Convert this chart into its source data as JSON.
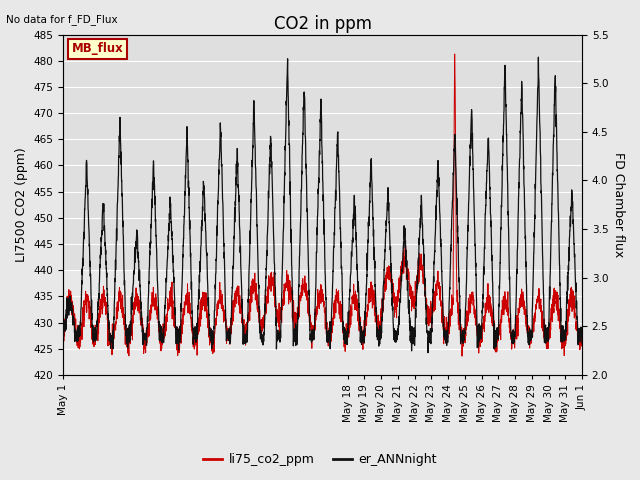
{
  "title": "CO2 in ppm",
  "top_left_text": "No data for f_FD_Flux",
  "ylabel_left": "LI7500 CO2 (ppm)",
  "ylabel_right": "FD Chamber flux",
  "ylim_left": [
    420,
    485
  ],
  "ylim_right": [
    2.0,
    5.5
  ],
  "yticks_left": [
    420,
    425,
    430,
    435,
    440,
    445,
    450,
    455,
    460,
    465,
    470,
    475,
    480,
    485
  ],
  "yticks_right": [
    2.0,
    2.5,
    3.0,
    3.5,
    4.0,
    4.5,
    5.0,
    5.5
  ],
  "xtick_positions": [
    0,
    17,
    18,
    19,
    20,
    21,
    22,
    23,
    24,
    25,
    26,
    27,
    28,
    29,
    30,
    31
  ],
  "xtick_labels": [
    "May 1",
    "May 18",
    "May 19",
    "May 20",
    "May 21",
    "May 22",
    "May 23",
    "May 24",
    "May 25",
    "May 26",
    "May 27",
    "May 28",
    "May 29",
    "May 30",
    "May 31",
    "Jun 1"
  ],
  "legend_entries": [
    "li75_co2_ppm",
    "er_ANNnight"
  ],
  "legend_colors": [
    "#dd0000",
    "#222222"
  ],
  "mb_flux_box_color": "#ffffcc",
  "mb_flux_border_color": "#aa0000",
  "mb_flux_text_color": "#aa0000",
  "red_line_color": "#cc0000",
  "black_line_color": "#111111",
  "background_color": "#e8e8e8",
  "plot_bg_color": "#e8e8e8",
  "grid_color": "#ffffff",
  "title_fontsize": 12,
  "axis_label_fontsize": 9,
  "tick_fontsize": 7.5,
  "figsize": [
    6.4,
    4.8
  ],
  "dpi": 100
}
